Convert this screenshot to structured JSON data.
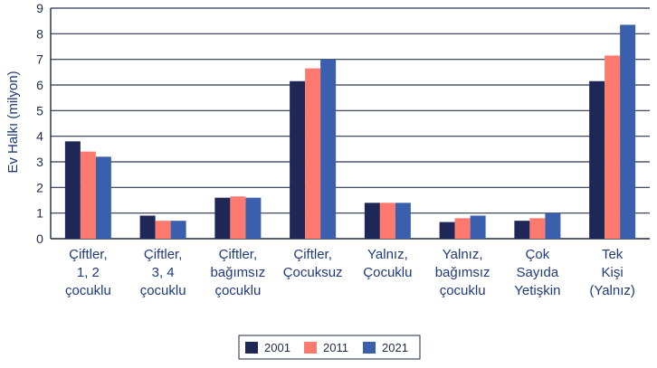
{
  "chart_data": {
    "type": "bar",
    "ylabel": "Ev Halkı (milyon)",
    "xlabel": "",
    "title": "",
    "ylim": [
      0,
      9
    ],
    "yticks": [
      0,
      1,
      2,
      3,
      4,
      5,
      6,
      7,
      8,
      9
    ],
    "grid": true,
    "legend": "bottom",
    "categories": [
      [
        "Çiftler,",
        "1, 2",
        "çocuklu"
      ],
      [
        "Çiftler,",
        "3, 4",
        "çocuklu"
      ],
      [
        "Çiftler,",
        "bağımsız",
        "çocuklu"
      ],
      [
        "Çiftler,",
        "Çocuksuz"
      ],
      [
        "Yalnız,",
        "Çocuklu"
      ],
      [
        "Yalnız,",
        "bağımsız",
        "çocuklu"
      ],
      [
        "Çok",
        "Sayıda",
        "Yetişkin"
      ],
      [
        "Tek",
        "Kişi",
        "(Yalnız)"
      ]
    ],
    "series": [
      {
        "name": "2001",
        "color": "#1f2757",
        "values": [
          3.8,
          0.9,
          1.6,
          6.15,
          1.4,
          0.65,
          0.7,
          6.15
        ]
      },
      {
        "name": "2011",
        "color": "#ff7a6e",
        "values": [
          3.4,
          0.7,
          1.65,
          6.65,
          1.4,
          0.8,
          0.8,
          7.15
        ]
      },
      {
        "name": "2021",
        "color": "#3a5fad",
        "values": [
          3.2,
          0.7,
          1.6,
          7.0,
          1.4,
          0.9,
          1.0,
          8.35
        ]
      }
    ]
  }
}
